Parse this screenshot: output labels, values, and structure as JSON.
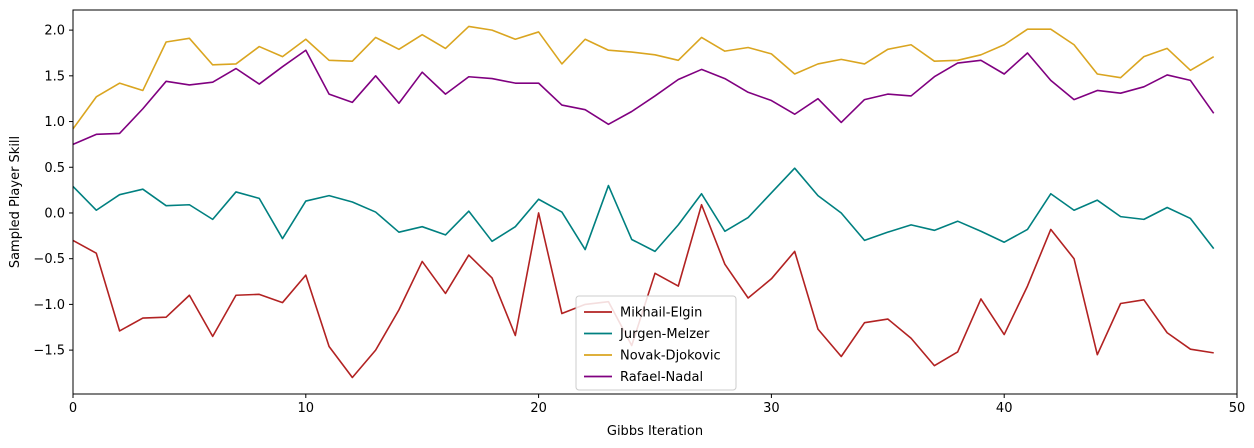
{
  "chart_data": {
    "type": "line",
    "title": "",
    "xlabel": "Gibbs Iteration",
    "ylabel": "Sampled Player Skill",
    "xlim": [
      0,
      50
    ],
    "ylim": [
      -1.98,
      2.22
    ],
    "xticks": [
      0,
      10,
      20,
      30,
      40,
      50
    ],
    "yticks": [
      -1.5,
      -1.0,
      -0.5,
      0.0,
      0.5,
      1.0,
      1.5,
      2.0
    ],
    "ytick_labels": [
      "−1.5",
      "−1.0",
      "−0.5",
      "0.0",
      "0.5",
      "1.0",
      "1.5",
      "2.0"
    ],
    "grid": false,
    "legend_position": "bottom-center",
    "x": [
      0,
      1,
      2,
      3,
      4,
      5,
      6,
      7,
      8,
      9,
      10,
      11,
      12,
      13,
      14,
      15,
      16,
      17,
      18,
      19,
      20,
      21,
      22,
      23,
      24,
      25,
      26,
      27,
      28,
      29,
      30,
      31,
      32,
      33,
      34,
      35,
      36,
      37,
      38,
      39,
      40,
      41,
      42,
      43,
      44,
      45,
      46,
      47,
      48,
      49
    ],
    "series": [
      {
        "name": "Mikhail-Elgin",
        "color": "#b22222",
        "values": [
          -0.3,
          -0.44,
          -1.29,
          -1.15,
          -1.14,
          -0.9,
          -1.35,
          -0.9,
          -0.89,
          -0.98,
          -0.68,
          -1.46,
          -1.8,
          -1.5,
          -1.06,
          -0.53,
          -0.88,
          -0.46,
          -0.71,
          -1.34,
          0.0,
          -1.1,
          -1.0,
          -0.97,
          -1.45,
          -0.66,
          -0.8,
          0.09,
          -0.56,
          -0.93,
          -0.72,
          -0.42,
          -1.27,
          -1.57,
          -1.2,
          -1.16,
          -1.37,
          -1.67,
          -1.52,
          -0.94,
          -1.33,
          -0.8,
          -0.18,
          -0.5,
          -1.55,
          -0.99,
          -0.95,
          -1.31,
          -1.49,
          -1.53
        ]
      },
      {
        "name": "Jurgen-Melzer",
        "color": "#008080",
        "values": [
          0.29,
          0.03,
          0.2,
          0.26,
          0.08,
          0.09,
          -0.07,
          0.23,
          0.16,
          -0.28,
          0.13,
          0.19,
          0.12,
          0.01,
          -0.21,
          -0.15,
          -0.24,
          0.02,
          -0.31,
          -0.15,
          0.15,
          0.01,
          -0.4,
          0.3,
          -0.29,
          -0.42,
          -0.13,
          0.21,
          -0.2,
          -0.05,
          0.22,
          0.49,
          0.19,
          0.0,
          -0.3,
          -0.21,
          -0.13,
          -0.19,
          -0.09,
          -0.2,
          -0.32,
          -0.18,
          0.21,
          0.03,
          0.14,
          -0.04,
          -0.07,
          0.06,
          -0.06,
          -0.39
        ]
      },
      {
        "name": "Novak-Djokovic",
        "color": "#daa520",
        "values": [
          0.92,
          1.27,
          1.42,
          1.34,
          1.87,
          1.91,
          1.62,
          1.63,
          1.82,
          1.71,
          1.9,
          1.67,
          1.66,
          1.92,
          1.79,
          1.95,
          1.8,
          2.04,
          2.0,
          1.9,
          1.98,
          1.63,
          1.9,
          1.78,
          1.76,
          1.73,
          1.67,
          1.92,
          1.77,
          1.81,
          1.74,
          1.52,
          1.63,
          1.68,
          1.63,
          1.79,
          1.84,
          1.66,
          1.67,
          1.73,
          1.84,
          2.01,
          2.01,
          1.84,
          1.52,
          1.48,
          1.71,
          1.8,
          1.56,
          1.71
        ]
      },
      {
        "name": "Rafael-Nadal",
        "color": "#800080",
        "values": [
          0.75,
          0.86,
          0.87,
          1.14,
          1.44,
          1.4,
          1.43,
          1.58,
          1.41,
          1.6,
          1.78,
          1.3,
          1.21,
          1.5,
          1.2,
          1.54,
          1.3,
          1.49,
          1.47,
          1.42,
          1.42,
          1.18,
          1.13,
          0.97,
          1.11,
          1.28,
          1.46,
          1.57,
          1.47,
          1.32,
          1.23,
          1.08,
          1.25,
          0.99,
          1.24,
          1.3,
          1.28,
          1.49,
          1.64,
          1.67,
          1.52,
          1.75,
          1.45,
          1.24,
          1.34,
          1.31,
          1.38,
          1.51,
          1.45,
          1.09
        ]
      }
    ]
  }
}
